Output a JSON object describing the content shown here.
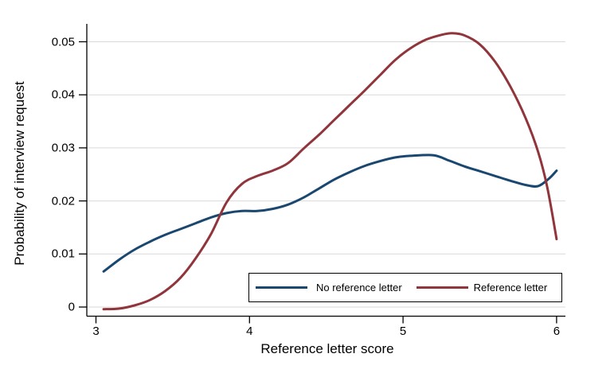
{
  "chart_data": {
    "type": "line",
    "title": "",
    "xlabel": "Reference letter score",
    "ylabel": "Probability of interview request",
    "xlim": [
      2.92,
      6.06
    ],
    "ylim": [
      -0.0017,
      0.0534
    ],
    "grid": "horizontal",
    "grid_color": "#d9d9d9",
    "axis_color": "#000000",
    "background": "#ffffff",
    "legend_position": "inside-bottom-right",
    "x_ticks": [
      3,
      4,
      5,
      6
    ],
    "x_tick_labels": [
      "3",
      "4",
      "5",
      "6"
    ],
    "y_ticks": [
      0,
      0.01,
      0.02,
      0.03,
      0.04,
      0.05
    ],
    "y_tick_labels": [
      "0",
      "0.01",
      "0.02",
      "0.03",
      "0.04",
      "0.05"
    ],
    "series": [
      {
        "name": "No reference letter",
        "color": "#1a476f",
        "points": [
          [
            3.05,
            0.0067
          ],
          [
            3.15,
            0.0089
          ],
          [
            3.25,
            0.0108
          ],
          [
            3.35,
            0.0123
          ],
          [
            3.45,
            0.0136
          ],
          [
            3.55,
            0.0147
          ],
          [
            3.65,
            0.0158
          ],
          [
            3.75,
            0.0169
          ],
          [
            3.85,
            0.0177
          ],
          [
            3.95,
            0.0181
          ],
          [
            4.05,
            0.0181
          ],
          [
            4.15,
            0.0185
          ],
          [
            4.25,
            0.0193
          ],
          [
            4.35,
            0.0206
          ],
          [
            4.45,
            0.0223
          ],
          [
            4.55,
            0.024
          ],
          [
            4.65,
            0.0254
          ],
          [
            4.75,
            0.0266
          ],
          [
            4.85,
            0.0275
          ],
          [
            4.95,
            0.0282
          ],
          [
            5.05,
            0.0285
          ],
          [
            5.2,
            0.0286
          ],
          [
            5.3,
            0.0276
          ],
          [
            5.4,
            0.0265
          ],
          [
            5.5,
            0.0256
          ],
          [
            5.6,
            0.0247
          ],
          [
            5.7,
            0.0238
          ],
          [
            5.8,
            0.023
          ],
          [
            5.88,
            0.0228
          ],
          [
            5.95,
            0.0242
          ],
          [
            6.0,
            0.0257
          ]
        ]
      },
      {
        "name": "Reference letter",
        "color": "#90353b",
        "points": [
          [
            3.05,
            -0.0004
          ],
          [
            3.15,
            -0.0003
          ],
          [
            3.25,
            0.0003
          ],
          [
            3.35,
            0.0013
          ],
          [
            3.45,
            0.003
          ],
          [
            3.55,
            0.0055
          ],
          [
            3.65,
            0.0092
          ],
          [
            3.75,
            0.0138
          ],
          [
            3.85,
            0.0197
          ],
          [
            3.95,
            0.0232
          ],
          [
            4.05,
            0.0247
          ],
          [
            4.15,
            0.0257
          ],
          [
            4.25,
            0.0271
          ],
          [
            4.35,
            0.0298
          ],
          [
            4.45,
            0.0324
          ],
          [
            4.55,
            0.0352
          ],
          [
            4.65,
            0.038
          ],
          [
            4.75,
            0.0408
          ],
          [
            4.85,
            0.0437
          ],
          [
            4.95,
            0.0466
          ],
          [
            5.05,
            0.0488
          ],
          [
            5.15,
            0.0504
          ],
          [
            5.25,
            0.0513
          ],
          [
            5.32,
            0.0516
          ],
          [
            5.4,
            0.0512
          ],
          [
            5.5,
            0.0495
          ],
          [
            5.6,
            0.0462
          ],
          [
            5.7,
            0.0415
          ],
          [
            5.8,
            0.0355
          ],
          [
            5.88,
            0.0292
          ],
          [
            5.94,
            0.0225
          ],
          [
            6.0,
            0.0128
          ]
        ]
      }
    ]
  }
}
